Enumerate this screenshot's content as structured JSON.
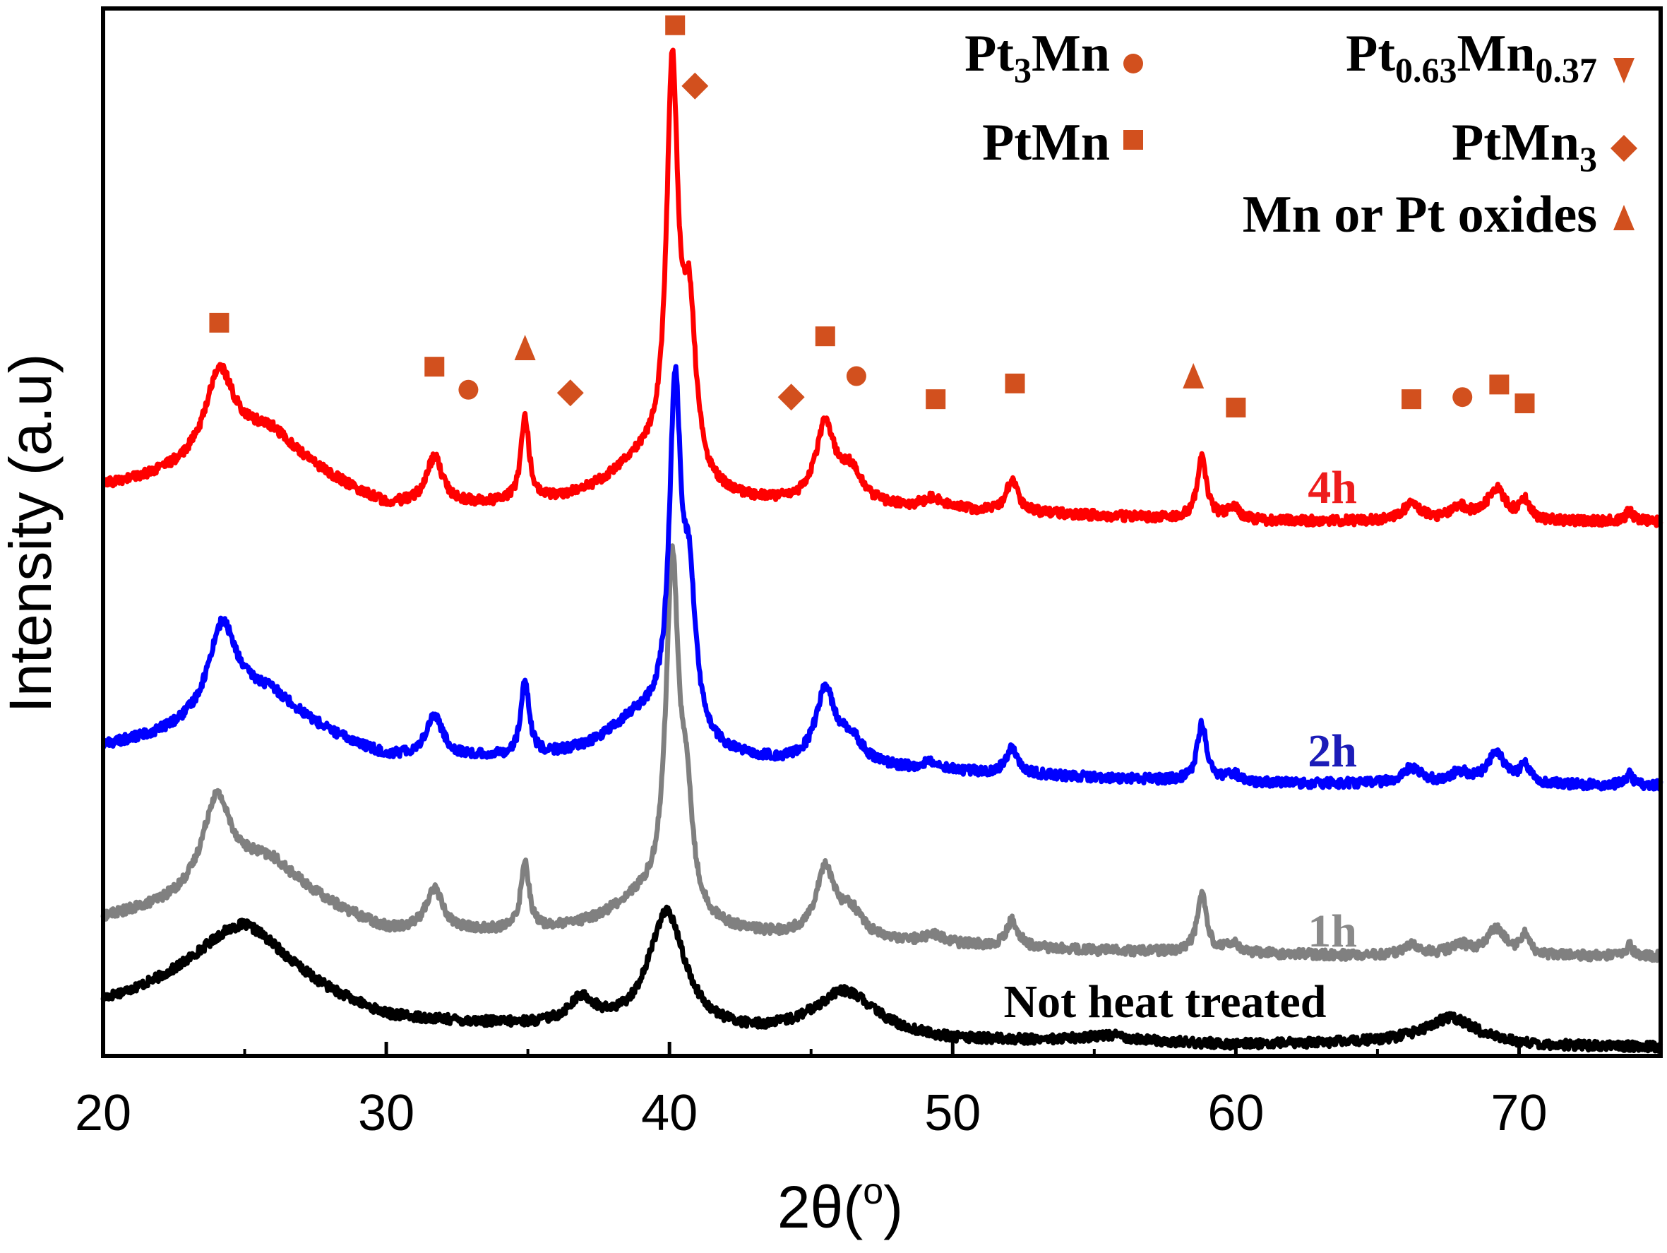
{
  "chart_data": {
    "type": "line",
    "title": "",
    "xlabel": "2θ(",
    "xlabel_sup": "o",
    "xlabel_end": ")",
    "ylabel": "Intensity (a.u)",
    "xlim": [
      20,
      75
    ],
    "ylim": [
      0,
      100
    ],
    "x_ticks": [
      20,
      30,
      40,
      50,
      60,
      70
    ],
    "x_tick_labels": [
      "20",
      "30",
      "40",
      "50",
      "60",
      "70"
    ],
    "marker_color": "#d2501e",
    "legend": [
      {
        "id": "pt3mn",
        "parts": [
          {
            "t": "Pt"
          },
          {
            "t": "3",
            "sub": true
          },
          {
            "t": "Mn"
          }
        ],
        "marker": "circle"
      },
      {
        "id": "ptmn",
        "parts": [
          {
            "t": "PtMn"
          }
        ],
        "marker": "square"
      },
      {
        "id": "pt063",
        "parts": [
          {
            "t": "Pt"
          },
          {
            "t": "0.63",
            "sub": true
          },
          {
            "t": "Mn"
          },
          {
            "t": "0.37",
            "sub": true
          }
        ],
        "marker": "triangle-down"
      },
      {
        "id": "ptmn3",
        "parts": [
          {
            "t": "PtMn"
          },
          {
            "t": "3",
            "sub": true
          }
        ],
        "marker": "diamond"
      },
      {
        "id": "oxides",
        "parts": [
          {
            "t": "Mn or Pt oxides"
          }
        ],
        "marker": "triangle-up"
      }
    ],
    "series": [
      {
        "name": "Not heat treated",
        "label": "Not heat treated",
        "color": "#000000",
        "label_color": "#000000",
        "baseline": [
          [
            20,
            4.5
          ],
          [
            25,
            6.5
          ],
          [
            30,
            3.0
          ],
          [
            35,
            2.5
          ],
          [
            40,
            1.8
          ],
          [
            50,
            1.2
          ],
          [
            55,
            1.4
          ],
          [
            60,
            1.0
          ],
          [
            66,
            1.2
          ],
          [
            70,
            0.9
          ],
          [
            75,
            0.8
          ]
        ],
        "peaks": [
          {
            "x": 24.9,
            "h": 6.0,
            "w": 4.5
          },
          {
            "x": 36.9,
            "h": 2.5,
            "w": 1.2
          },
          {
            "x": 39.9,
            "h": 11.5,
            "w": 1.6
          },
          {
            "x": 46.2,
            "h": 4.5,
            "w": 2.8
          },
          {
            "x": 55.6,
            "h": 0.5,
            "w": 1.5
          },
          {
            "x": 67.6,
            "h": 2.5,
            "w": 2.2
          }
        ]
      },
      {
        "name": "1h",
        "label": "1h",
        "color": "#808080",
        "label_color": "#8a8a8a",
        "baseline": [
          [
            20,
            12.8
          ],
          [
            26,
            15.0
          ],
          [
            30,
            11.5
          ],
          [
            40,
            11.5
          ],
          [
            55,
            10.0
          ],
          [
            65,
            9.5
          ],
          [
            75,
            9.5
          ]
        ],
        "peaks": [
          {
            "x": 24.0,
            "h": 8.5,
            "w": 1.2
          },
          {
            "x": 25.5,
            "h": 3.5,
            "w": 4.0
          },
          {
            "x": 31.7,
            "h": 4.0,
            "w": 0.7
          },
          {
            "x": 34.9,
            "h": 6.5,
            "w": 0.35
          },
          {
            "x": 39.0,
            "h": 3.0,
            "w": 3.0
          },
          {
            "x": 40.1,
            "h": 33.0,
            "w": 0.55
          },
          {
            "x": 40.6,
            "h": 9.0,
            "w": 0.5
          },
          {
            "x": 45.5,
            "h": 6.5,
            "w": 0.8
          },
          {
            "x": 46.4,
            "h": 2.5,
            "w": 1.0
          },
          {
            "x": 49.3,
            "h": 0.8,
            "w": 0.8
          },
          {
            "x": 52.1,
            "h": 2.5,
            "w": 0.5
          },
          {
            "x": 58.8,
            "h": 5.5,
            "w": 0.4
          },
          {
            "x": 59.9,
            "h": 0.8,
            "w": 0.6
          },
          {
            "x": 66.2,
            "h": 1.0,
            "w": 0.8
          },
          {
            "x": 67.9,
            "h": 1.0,
            "w": 0.8
          },
          {
            "x": 69.2,
            "h": 2.5,
            "w": 0.8
          },
          {
            "x": 70.2,
            "h": 1.8,
            "w": 0.4
          },
          {
            "x": 73.9,
            "h": 1.0,
            "w": 0.3
          }
        ]
      },
      {
        "name": "2h",
        "label": "2h",
        "color": "#0000ff",
        "label_color": "#1c1cb8",
        "baseline": [
          [
            20,
            29.2
          ],
          [
            26,
            31.0
          ],
          [
            30,
            28.0
          ],
          [
            40,
            28.0
          ],
          [
            50,
            27.0
          ],
          [
            60,
            26.0
          ],
          [
            75,
            25.8
          ]
        ],
        "peaks": [
          {
            "x": 24.2,
            "h": 8.5,
            "w": 1.2
          },
          {
            "x": 25.5,
            "h": 3.5,
            "w": 4.0
          },
          {
            "x": 31.7,
            "h": 4.0,
            "w": 0.7
          },
          {
            "x": 34.9,
            "h": 7.0,
            "w": 0.35
          },
          {
            "x": 39.0,
            "h": 4.0,
            "w": 3.0
          },
          {
            "x": 40.2,
            "h": 32.0,
            "w": 0.5
          },
          {
            "x": 40.7,
            "h": 13.0,
            "w": 0.55
          },
          {
            "x": 45.5,
            "h": 7.0,
            "w": 0.8
          },
          {
            "x": 46.4,
            "h": 2.5,
            "w": 1.0
          },
          {
            "x": 49.3,
            "h": 0.8,
            "w": 0.8
          },
          {
            "x": 52.1,
            "h": 2.5,
            "w": 0.5
          },
          {
            "x": 58.8,
            "h": 5.5,
            "w": 0.4
          },
          {
            "x": 59.9,
            "h": 0.8,
            "w": 0.6
          },
          {
            "x": 66.2,
            "h": 1.5,
            "w": 0.8
          },
          {
            "x": 67.9,
            "h": 1.0,
            "w": 0.8
          },
          {
            "x": 69.2,
            "h": 2.8,
            "w": 0.8
          },
          {
            "x": 70.2,
            "h": 1.8,
            "w": 0.4
          },
          {
            "x": 73.9,
            "h": 1.0,
            "w": 0.3
          }
        ]
      },
      {
        "name": "4h",
        "label": "4h",
        "color": "#ff0000",
        "label_color": "#ee1c1c",
        "baseline": [
          [
            20,
            54.0
          ],
          [
            26,
            56.0
          ],
          [
            30,
            52.0
          ],
          [
            40,
            52.5
          ],
          [
            50,
            52.0
          ],
          [
            60,
            51.0
          ],
          [
            75,
            51.0
          ]
        ],
        "peaks": [
          {
            "x": 24.1,
            "h": 8.0,
            "w": 1.2
          },
          {
            "x": 25.5,
            "h": 3.5,
            "w": 4.0
          },
          {
            "x": 31.7,
            "h": 4.5,
            "w": 0.7
          },
          {
            "x": 34.9,
            "h": 8.0,
            "w": 0.35
          },
          {
            "x": 39.0,
            "h": 4.0,
            "w": 3.0
          },
          {
            "x": 40.1,
            "h": 38.0,
            "w": 0.5
          },
          {
            "x": 40.7,
            "h": 15.0,
            "w": 0.55
          },
          {
            "x": 45.5,
            "h": 7.5,
            "w": 0.8
          },
          {
            "x": 46.4,
            "h": 3.0,
            "w": 1.0
          },
          {
            "x": 49.3,
            "h": 1.0,
            "w": 0.8
          },
          {
            "x": 52.1,
            "h": 3.0,
            "w": 0.5
          },
          {
            "x": 58.8,
            "h": 6.0,
            "w": 0.4
          },
          {
            "x": 59.9,
            "h": 1.2,
            "w": 0.6
          },
          {
            "x": 66.2,
            "h": 1.5,
            "w": 0.8
          },
          {
            "x": 67.9,
            "h": 1.2,
            "w": 0.8
          },
          {
            "x": 69.2,
            "h": 3.0,
            "w": 0.8
          },
          {
            "x": 70.2,
            "h": 1.8,
            "w": 0.4
          },
          {
            "x": 73.9,
            "h": 1.0,
            "w": 0.3
          }
        ]
      }
    ],
    "phase_markers": [
      {
        "x": 24.1,
        "y": 70.0,
        "marker": "square"
      },
      {
        "x": 31.7,
        "y": 65.8,
        "marker": "square"
      },
      {
        "x": 32.9,
        "y": 63.6,
        "marker": "circle"
      },
      {
        "x": 34.9,
        "y": 67.5,
        "marker": "triangle-up"
      },
      {
        "x": 36.5,
        "y": 63.3,
        "marker": "diamond"
      },
      {
        "x": 40.2,
        "y": 98.4,
        "marker": "square"
      },
      {
        "x": 40.9,
        "y": 92.6,
        "marker": "diamond"
      },
      {
        "x": 44.3,
        "y": 62.9,
        "marker": "diamond"
      },
      {
        "x": 45.5,
        "y": 68.7,
        "marker": "square"
      },
      {
        "x": 46.6,
        "y": 64.9,
        "marker": "circle"
      },
      {
        "x": 49.4,
        "y": 62.7,
        "marker": "square"
      },
      {
        "x": 52.2,
        "y": 64.2,
        "marker": "square"
      },
      {
        "x": 58.5,
        "y": 64.8,
        "marker": "triangle-up"
      },
      {
        "x": 60.0,
        "y": 61.9,
        "marker": "square"
      },
      {
        "x": 66.2,
        "y": 62.7,
        "marker": "square"
      },
      {
        "x": 68.0,
        "y": 62.9,
        "marker": "circle"
      },
      {
        "x": 69.3,
        "y": 64.1,
        "marker": "square"
      },
      {
        "x": 70.2,
        "y": 62.3,
        "marker": "square"
      }
    ]
  }
}
